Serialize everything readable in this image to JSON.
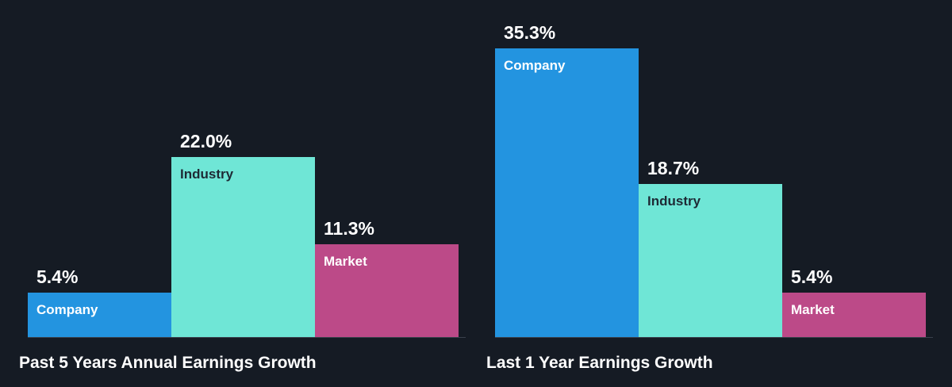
{
  "colors": {
    "background": "#151b24",
    "company": "#2394e0",
    "industry": "#6fe6d6",
    "market": "#bc4a88",
    "baseline": "#3a414c",
    "text_light": "#ffffff",
    "text_dark": "#1e2a35"
  },
  "chart_data": [
    {
      "type": "bar",
      "title": "Past 5 Years Annual Earnings Growth",
      "categories": [
        "Company",
        "Industry",
        "Market"
      ],
      "values": [
        5.4,
        22.0,
        11.3
      ],
      "value_labels": [
        "5.4%",
        "22.0%",
        "11.3%"
      ],
      "unit": "%",
      "ylim": [
        0,
        35.3
      ],
      "grid": false,
      "legend": "none"
    },
    {
      "type": "bar",
      "title": "Last 1 Year Earnings Growth",
      "categories": [
        "Company",
        "Industry",
        "Market"
      ],
      "values": [
        35.3,
        18.7,
        5.4
      ],
      "value_labels": [
        "35.3%",
        "18.7%",
        "5.4%"
      ],
      "unit": "%",
      "ylim": [
        0,
        35.3
      ],
      "grid": false,
      "legend": "none"
    }
  ]
}
